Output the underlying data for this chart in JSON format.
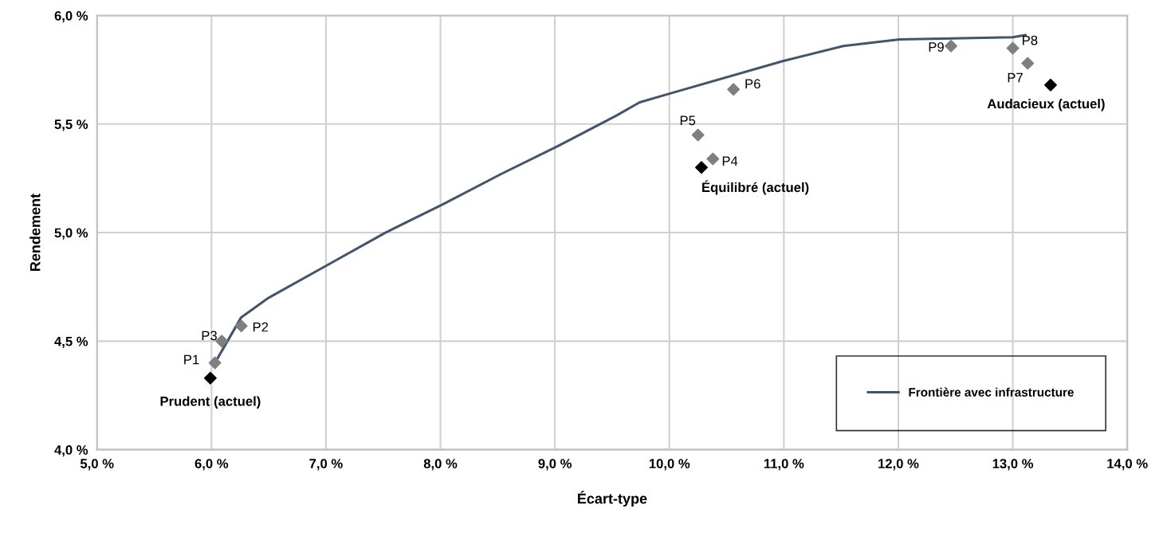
{
  "chart_data": {
    "type": "line",
    "xlabel": "Écart-type",
    "ylabel": "Rendement",
    "xlim": [
      5.0,
      14.0
    ],
    "ylim": [
      4.0,
      6.0
    ],
    "xticks": [
      {
        "value": 5.0,
        "label": "5,0 %"
      },
      {
        "value": 6.0,
        "label": "6,0 %"
      },
      {
        "value": 7.0,
        "label": "7,0 %"
      },
      {
        "value": 8.0,
        "label": "8,0 %"
      },
      {
        "value": 9.0,
        "label": "9,0 %"
      },
      {
        "value": 10.0,
        "label": "10,0 %"
      },
      {
        "value": 11.0,
        "label": "11,0 %"
      },
      {
        "value": 12.0,
        "label": "12,0 %"
      },
      {
        "value": 13.0,
        "label": "13,0 %"
      },
      {
        "value": 14.0,
        "label": "14,0 %"
      }
    ],
    "yticks": [
      {
        "value": 4.0,
        "label": "4,0 %"
      },
      {
        "value": 4.5,
        "label": "4,5 %"
      },
      {
        "value": 5.0,
        "label": "5,0 %"
      },
      {
        "value": 5.5,
        "label": "5,5 %"
      },
      {
        "value": 6.0,
        "label": "6,0 %"
      }
    ],
    "grid": true,
    "legend": "bottom right",
    "series": [
      {
        "name": "Frontière avec infrastructure",
        "color": "#44546a",
        "x": [
          6.03,
          6.26,
          6.5,
          7.01,
          7.52,
          8.02,
          8.53,
          9.03,
          9.54,
          9.74,
          10.0,
          10.99,
          11.52,
          12.01,
          13.0,
          13.11
        ],
        "values": [
          4.4,
          4.61,
          4.7,
          4.85,
          5.0,
          5.13,
          5.27,
          5.4,
          5.54,
          5.6,
          5.64,
          5.79,
          5.86,
          5.89,
          5.9,
          5.91
        ]
      },
      {
        "type": "scatter",
        "marker": "diamond",
        "color": "#7f7f7f",
        "x": [
          6.03,
          6.26,
          6.09,
          10.38,
          10.25,
          10.56,
          13.13,
          13.0,
          12.46
        ],
        "values": [
          4.4,
          4.57,
          4.5,
          5.34,
          5.45,
          5.66,
          5.78,
          5.85,
          5.86
        ]
      },
      {
        "type": "scatter",
        "marker": "diamond",
        "color": "#000000",
        "x": [
          5.99,
          10.28,
          13.33
        ],
        "values": [
          4.33,
          5.3,
          5.68
        ]
      }
    ],
    "annotations": [
      {
        "text": "P1",
        "x": 6.03,
        "y": 4.4
      },
      {
        "text": "P2",
        "x": 6.26,
        "y": 4.57
      },
      {
        "text": "P3",
        "x": 6.09,
        "y": 4.5
      },
      {
        "text": "P4",
        "x": 10.38,
        "y": 5.34
      },
      {
        "text": "P5",
        "x": 10.25,
        "y": 5.45
      },
      {
        "text": "P6",
        "x": 10.56,
        "y": 5.66
      },
      {
        "text": "P7",
        "x": 13.13,
        "y": 5.78
      },
      {
        "text": "P8",
        "x": 13.0,
        "y": 5.85
      },
      {
        "text": "P9",
        "x": 12.46,
        "y": 5.86
      },
      {
        "text": "Prudent (actuel)",
        "x": 5.99,
        "y": 4.33
      },
      {
        "text": "Équilibré (actuel)",
        "x": 10.28,
        "y": 5.3
      },
      {
        "text": "Audacieux (actuel)",
        "x": 13.33,
        "y": 5.68
      }
    ]
  }
}
